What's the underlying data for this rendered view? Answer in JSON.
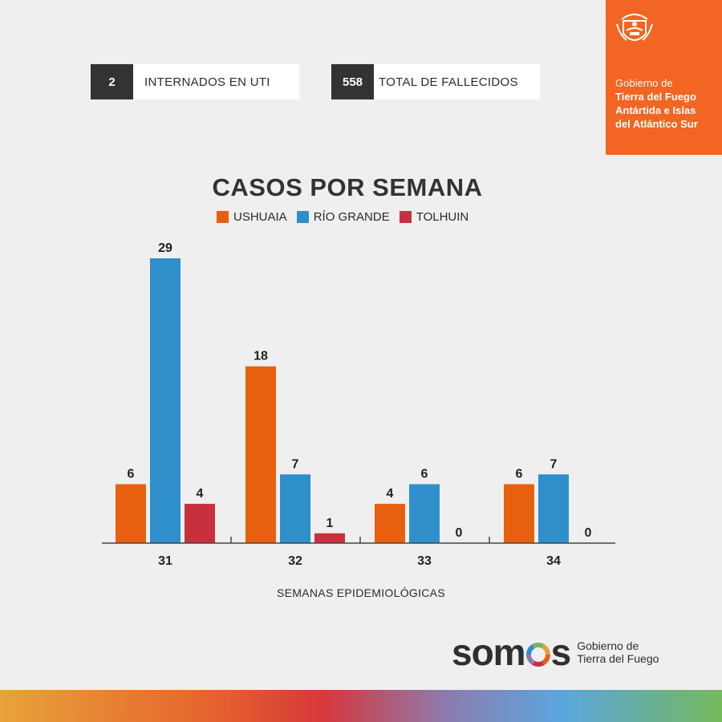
{
  "stats": [
    {
      "value": "2",
      "label": "INTERNADOS EN UTI"
    },
    {
      "value": "558",
      "label": "TOTAL DE FALLECIDOS"
    }
  ],
  "brand": {
    "line1": "Gobierno de",
    "line2": "Tierra del Fuego",
    "line3": "Antártida e Islas",
    "line4": "del Atlántico Sur",
    "color": "#f26522",
    "icon": "provincial-coat-of-arms-icon"
  },
  "chart_data": {
    "type": "bar",
    "title": "CASOS POR SEMANA",
    "xlabel": "SEMANAS EPIDEMIOLÓGICAS",
    "ylabel": "",
    "categories": [
      "31",
      "32",
      "33",
      "34"
    ],
    "series": [
      {
        "name": "USHUAIA",
        "color": "#e8600f",
        "values": [
          6,
          18,
          4,
          6
        ]
      },
      {
        "name": "RÍO GRANDE",
        "color": "#2e8fcb",
        "values": [
          29,
          7,
          6,
          7
        ]
      },
      {
        "name": "TOLHUIN",
        "color": "#c9303e",
        "values": [
          4,
          1,
          0,
          0
        ]
      }
    ],
    "ylim": [
      0,
      29
    ],
    "grid": false,
    "legend_position": "top-center"
  },
  "footer": {
    "logo_word": "somos",
    "logo_gov_line1": "Gobierno de",
    "logo_gov_line2": "Tierra del Fuego"
  }
}
